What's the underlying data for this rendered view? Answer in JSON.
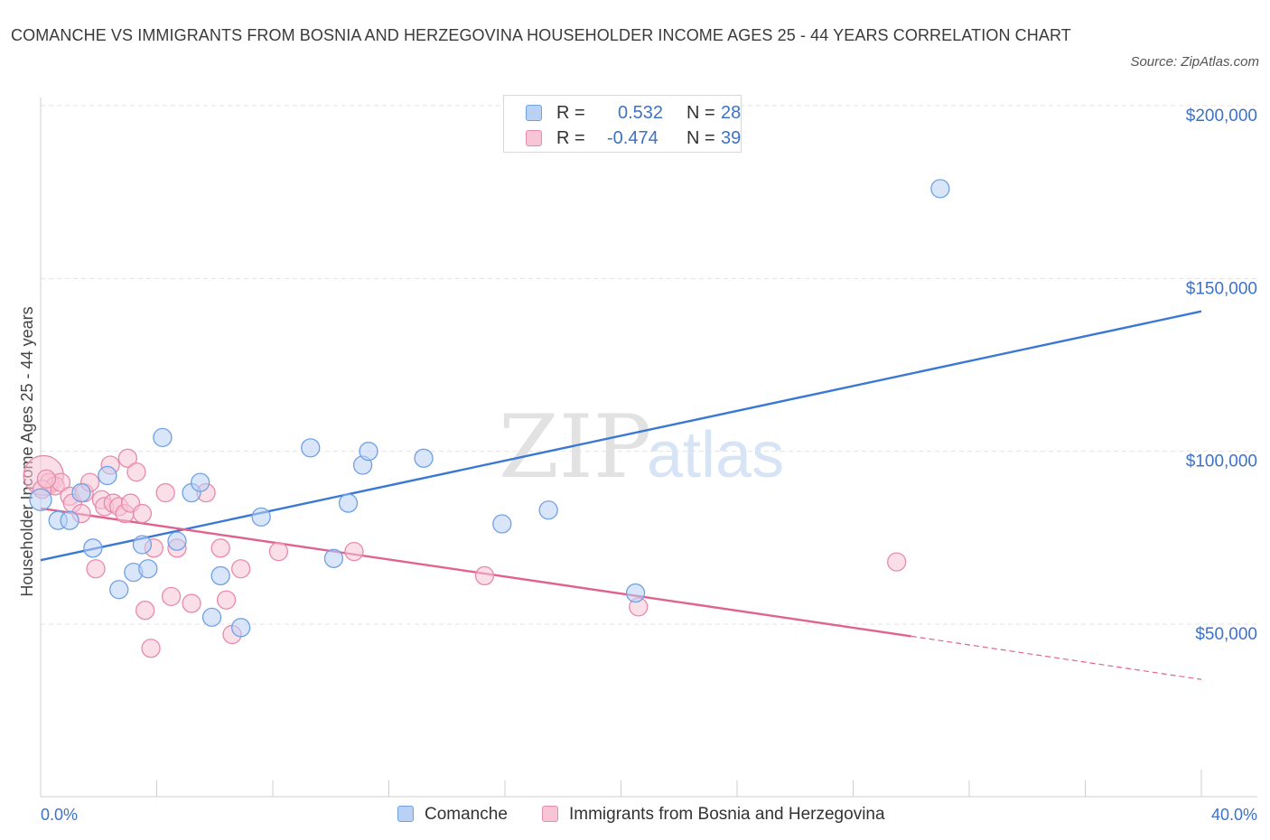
{
  "title": "COMANCHE VS IMMIGRANTS FROM BOSNIA AND HERZEGOVINA HOUSEHOLDER INCOME AGES 25 - 44 YEARS CORRELATION CHART",
  "source": "Source: ZipAtlas.com",
  "watermark": {
    "zip": "ZIP",
    "atlas": "atlas"
  },
  "legend": {
    "r_label": "R =",
    "n_label": "N =",
    "items": [
      {
        "name": "Comanche",
        "r": "0.532",
        "n": "28",
        "color": "#6fa0e6",
        "fill": "#b9d1f5"
      },
      {
        "name": "Immigrants from Bosnia and Herzegovina",
        "r": "-0.474",
        "n": "39",
        "color": "#e88aaa",
        "fill": "#f8c5d6"
      }
    ]
  },
  "chart_data": {
    "type": "scatter",
    "title": "COMANCHE VS IMMIGRANTS FROM BOSNIA AND HERZEGOVINA HOUSEHOLDER INCOME AGES 25 - 44 YEARS CORRELATION CHART",
    "xlabel": "",
    "ylabel": "Householder Income Ages 25 - 44 years",
    "xlim": [
      0,
      40
    ],
    "ylim": [
      0,
      205000
    ],
    "x_tick_labels": [
      "0.0%",
      "40.0%"
    ],
    "y_ticks": [
      50000,
      100000,
      150000,
      200000
    ],
    "y_tick_labels": [
      "$50,000",
      "$100,000",
      "$150,000",
      "$200,000"
    ],
    "grid": "horizontal dashed",
    "legend_placement": "top-center and bottom",
    "series": [
      {
        "name": "Comanche",
        "color": "#3a78d4",
        "points": [
          [
            0.0,
            86000
          ],
          [
            0.6,
            80000
          ],
          [
            1.0,
            80000
          ],
          [
            1.4,
            88000
          ],
          [
            1.8,
            72000
          ],
          [
            2.3,
            93000
          ],
          [
            2.7,
            60000
          ],
          [
            3.2,
            65000
          ],
          [
            3.5,
            73000
          ],
          [
            3.7,
            66000
          ],
          [
            4.2,
            104000
          ],
          [
            4.7,
            74000
          ],
          [
            5.2,
            88000
          ],
          [
            5.5,
            91000
          ],
          [
            5.9,
            52000
          ],
          [
            6.2,
            64000
          ],
          [
            6.9,
            49000
          ],
          [
            7.6,
            81000
          ],
          [
            9.3,
            101000
          ],
          [
            10.1,
            69000
          ],
          [
            10.6,
            85000
          ],
          [
            11.1,
            96000
          ],
          [
            11.3,
            100000
          ],
          [
            13.2,
            98000
          ],
          [
            15.9,
            79000
          ],
          [
            17.5,
            83000
          ],
          [
            20.5,
            59000
          ],
          [
            31.0,
            176000
          ]
        ],
        "trend": {
          "x": [
            0,
            40
          ],
          "y": [
            68500,
            140500
          ]
        }
      },
      {
        "name": "Immigrants from Bosnia and Herzegovina",
        "color": "#e0638f",
        "points": [
          [
            0.1,
            93000
          ],
          [
            0.3,
            91000
          ],
          [
            0.5,
            90000
          ],
          [
            0.7,
            91000
          ],
          [
            1.0,
            87000
          ],
          [
            1.1,
            85000
          ],
          [
            1.4,
            82000
          ],
          [
            1.5,
            88000
          ],
          [
            1.7,
            91000
          ],
          [
            1.9,
            66000
          ],
          [
            2.1,
            86000
          ],
          [
            2.2,
            84000
          ],
          [
            2.4,
            96000
          ],
          [
            2.5,
            85000
          ],
          [
            2.7,
            84000
          ],
          [
            2.9,
            82000
          ],
          [
            3.0,
            98000
          ],
          [
            3.1,
            85000
          ],
          [
            3.3,
            94000
          ],
          [
            3.5,
            82000
          ],
          [
            3.6,
            54000
          ],
          [
            3.8,
            43000
          ],
          [
            3.9,
            72000
          ],
          [
            4.3,
            88000
          ],
          [
            4.5,
            58000
          ],
          [
            4.7,
            72000
          ],
          [
            5.2,
            56000
          ],
          [
            5.7,
            88000
          ],
          [
            6.2,
            72000
          ],
          [
            6.4,
            57000
          ],
          [
            6.6,
            47000
          ],
          [
            6.9,
            66000
          ],
          [
            8.2,
            71000
          ],
          [
            10.8,
            71000
          ],
          [
            15.3,
            64000
          ],
          [
            20.6,
            55000
          ],
          [
            29.5,
            68000
          ],
          [
            0.05,
            89000
          ],
          [
            0.2,
            92000
          ]
        ],
        "trend": {
          "x": [
            0,
            30
          ],
          "y": [
            83500,
            46500
          ]
        },
        "trend_dashed": {
          "x": [
            30,
            40
          ],
          "y": [
            46500,
            34000
          ]
        }
      }
    ]
  }
}
